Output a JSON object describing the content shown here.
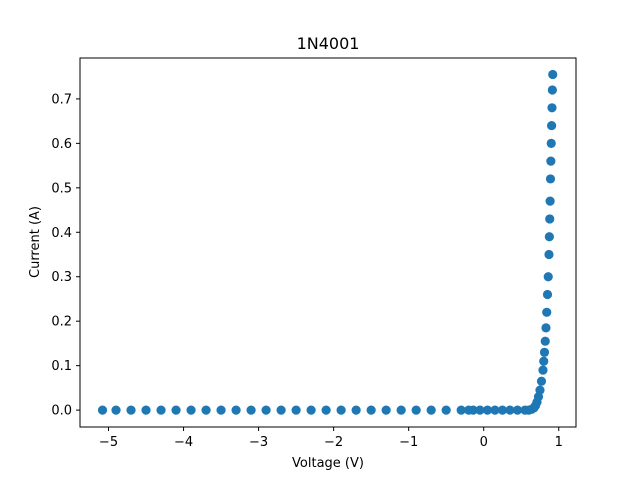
{
  "chart_data": {
    "type": "scatter",
    "title": "1N4001",
    "xlabel": "Voltage (V)",
    "ylabel": "Current (A)",
    "xlim": [
      -5.38,
      1.23
    ],
    "ylim": [
      -0.038,
      0.792
    ],
    "xticks": [
      -5,
      -4,
      -3,
      -2,
      -1,
      0,
      1
    ],
    "xtick_labels": [
      "−5",
      "−4",
      "−3",
      "−2",
      "−1",
      "0",
      "1"
    ],
    "yticks": [
      0.0,
      0.1,
      0.2,
      0.3,
      0.4,
      0.5,
      0.6,
      0.7
    ],
    "ytick_labels": [
      "0.0",
      "0.1",
      "0.2",
      "0.3",
      "0.4",
      "0.5",
      "0.6",
      "0.7"
    ],
    "grid": false,
    "marker_color": "#1f77b4",
    "series": [
      {
        "x": [
          -5.08,
          -4.9,
          -4.7,
          -4.5,
          -4.3,
          -4.1,
          -3.9,
          -3.7,
          -3.5,
          -3.3,
          -3.1,
          -2.9,
          -2.7,
          -2.5,
          -2.3,
          -2.1,
          -1.9,
          -1.7,
          -1.5,
          -1.3,
          -1.1,
          -0.9,
          -0.7,
          -0.5,
          -0.3,
          -0.2,
          -0.14,
          -0.05,
          0.05,
          0.15,
          0.25,
          0.35,
          0.45,
          0.55,
          0.6,
          0.64,
          0.67,
          0.69,
          0.71,
          0.73,
          0.75,
          0.77,
          0.79,
          0.8,
          0.81,
          0.82,
          0.83,
          0.84,
          0.85,
          0.86,
          0.87,
          0.875,
          0.88,
          0.885,
          0.89,
          0.895,
          0.9,
          0.905,
          0.91,
          0.915,
          0.92
        ],
        "y": [
          0.0,
          0.0,
          0.0,
          0.0,
          0.0,
          0.0,
          0.0,
          0.0,
          0.0,
          0.0,
          0.0,
          0.0,
          0.0,
          0.0,
          0.0,
          0.0,
          0.0,
          0.0,
          0.0,
          0.0,
          0.0,
          0.0,
          0.0,
          0.0,
          0.0,
          0.0,
          0.0,
          0.0,
          0.0,
          0.0,
          0.0,
          0.0,
          0.0,
          0.0,
          0.0,
          0.002,
          0.005,
          0.01,
          0.018,
          0.03,
          0.045,
          0.065,
          0.09,
          0.11,
          0.13,
          0.155,
          0.185,
          0.22,
          0.26,
          0.3,
          0.35,
          0.39,
          0.43,
          0.47,
          0.52,
          0.56,
          0.6,
          0.64,
          0.68,
          0.72,
          0.755
        ]
      }
    ]
  }
}
